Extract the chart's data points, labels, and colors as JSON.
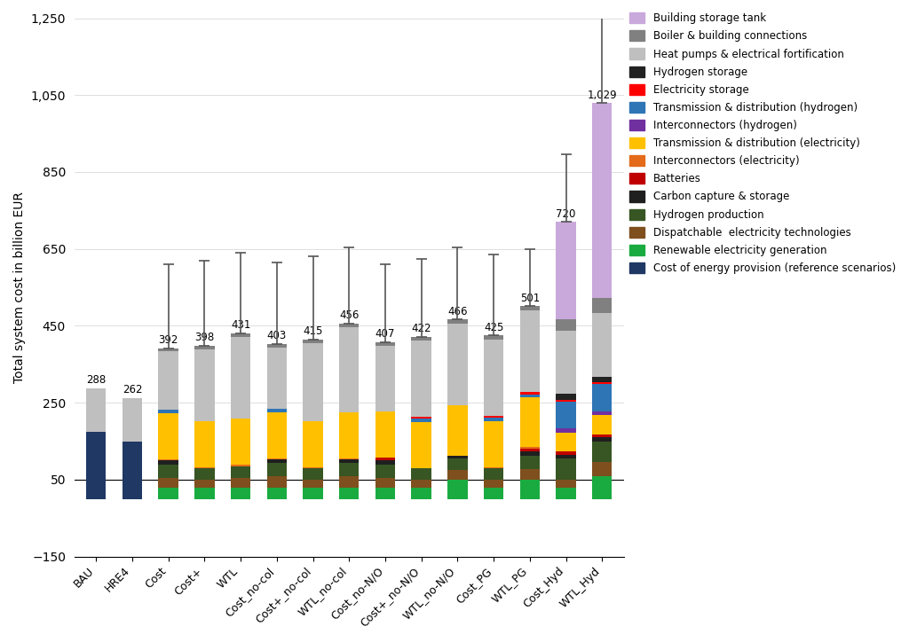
{
  "scenarios": [
    "BAU",
    "HRE4",
    "Cost",
    "Cost+",
    "WTL",
    "Cost_no-col",
    "Cost+_no-col",
    "WTL_no-col",
    "Cost_no-N/O",
    "Cost+_no-N/O",
    "WTL_no-N/O",
    "Cost_PG",
    "WTL_PG",
    "Cost_Hyd",
    "WTL_Hyd"
  ],
  "bar_labels": [
    "288",
    "262",
    "392",
    "398",
    "431",
    "403",
    "415",
    "456",
    "407",
    "422",
    "466",
    "425",
    "501",
    "720",
    "1,029"
  ],
  "totals": [
    288,
    262,
    392,
    398,
    431,
    403,
    415,
    456,
    407,
    422,
    466,
    425,
    501,
    720,
    1029
  ],
  "technologies": [
    "Cost of energy provision (reference scenarios)",
    "Renewable electricity generation",
    "Dispatchable  electricity technologies",
    "Hydrogen production",
    "Carbon capture & storage",
    "Batteries",
    "Interconnectors (electricity)",
    "Transmission & distribution (electricity)",
    "Interconnectors (hydrogen)",
    "Transmission & distribution (hydrogen)",
    "Electricity storage",
    "Hydrogen storage",
    "Heat pumps & electrical fortification",
    "Boiler & building connections",
    "Building storage tank"
  ],
  "colors": [
    "#1f3864",
    "#1aab40",
    "#7f4f1e",
    "#375623",
    "#1f1f1f",
    "#c00000",
    "#e36b1a",
    "#ffc000",
    "#7030a0",
    "#2e75b6",
    "#ff0000",
    "#222222",
    "#bfbfbf",
    "#808080",
    "#c9a8dc"
  ],
  "segments": {
    "BAU": [
      175,
      0,
      0,
      0,
      0,
      0,
      0,
      0,
      0,
      0,
      0,
      0,
      113,
      0,
      0
    ],
    "HRE4": [
      150,
      0,
      0,
      0,
      0,
      0,
      0,
      0,
      0,
      0,
      0,
      0,
      112,
      0,
      0
    ],
    "Cost": [
      0,
      30,
      25,
      35,
      10,
      0,
      3,
      120,
      0,
      8,
      0,
      0,
      152,
      9,
      0
    ],
    "Cost+": [
      0,
      28,
      22,
      30,
      0,
      0,
      3,
      120,
      0,
      0,
      0,
      0,
      185,
      10,
      0
    ],
    "WTL": [
      0,
      30,
      25,
      30,
      0,
      0,
      3,
      120,
      0,
      0,
      0,
      0,
      213,
      10,
      0
    ],
    "Cost_no-col": [
      0,
      30,
      28,
      35,
      10,
      0,
      3,
      120,
      0,
      8,
      0,
      0,
      159,
      10,
      0
    ],
    "Cost+_no-col": [
      0,
      28,
      22,
      30,
      0,
      0,
      3,
      120,
      0,
      0,
      0,
      0,
      202,
      10,
      0
    ],
    "WTL_no-col": [
      0,
      30,
      28,
      35,
      10,
      0,
      3,
      120,
      0,
      0,
      0,
      0,
      220,
      10,
      0
    ],
    "Cost_no-N/O": [
      0,
      30,
      25,
      35,
      10,
      8,
      0,
      120,
      0,
      0,
      0,
      0,
      169,
      10,
      0
    ],
    "Cost+_no-N/O": [
      0,
      28,
      22,
      30,
      0,
      0,
      0,
      120,
      0,
      8,
      5,
      0,
      199,
      10,
      0
    ],
    "WTL_no-N/O": [
      0,
      50,
      25,
      30,
      8,
      0,
      0,
      130,
      0,
      0,
      0,
      0,
      213,
      10,
      0
    ],
    "Cost_PG": [
      0,
      28,
      22,
      30,
      0,
      0,
      3,
      120,
      0,
      8,
      5,
      0,
      199,
      10,
      0
    ],
    "WTL_PG": [
      0,
      50,
      28,
      35,
      10,
      8,
      3,
      130,
      0,
      8,
      5,
      0,
      214,
      10,
      0
    ],
    "Cost_Hyd": [
      0,
      28,
      22,
      55,
      10,
      8,
      0,
      50,
      10,
      70,
      5,
      15,
      165,
      30,
      252
    ],
    "WTL_Hyd": [
      0,
      60,
      35,
      55,
      10,
      8,
      0,
      50,
      10,
      70,
      5,
      15,
      165,
      40,
      506
    ]
  },
  "error_bars": {
    "BAU": [
      null,
      null
    ],
    "HRE4": [
      null,
      null
    ],
    "Cost": [
      392,
      610
    ],
    "Cost+": [
      398,
      620
    ],
    "WTL": [
      431,
      640
    ],
    "Cost_no-col": [
      403,
      615
    ],
    "Cost+_no-col": [
      415,
      630
    ],
    "WTL_no-col": [
      456,
      655
    ],
    "Cost_no-N/O": [
      407,
      610
    ],
    "Cost+_no-N/O": [
      422,
      625
    ],
    "WTL_no-N/O": [
      466,
      655
    ],
    "Cost_PG": [
      425,
      635
    ],
    "WTL_PG": [
      501,
      650
    ],
    "Cost_Hyd": [
      720,
      895
    ],
    "WTL_Hyd": [
      1029,
      1275
    ]
  },
  "ylim": [
    -150,
    1250
  ],
  "yticks": [
    -150,
    50,
    250,
    450,
    650,
    850,
    1050,
    1250
  ],
  "ylabel": "Total system cost in billion EUR",
  "figsize": [
    10.24,
    7.24
  ],
  "dpi": 100
}
